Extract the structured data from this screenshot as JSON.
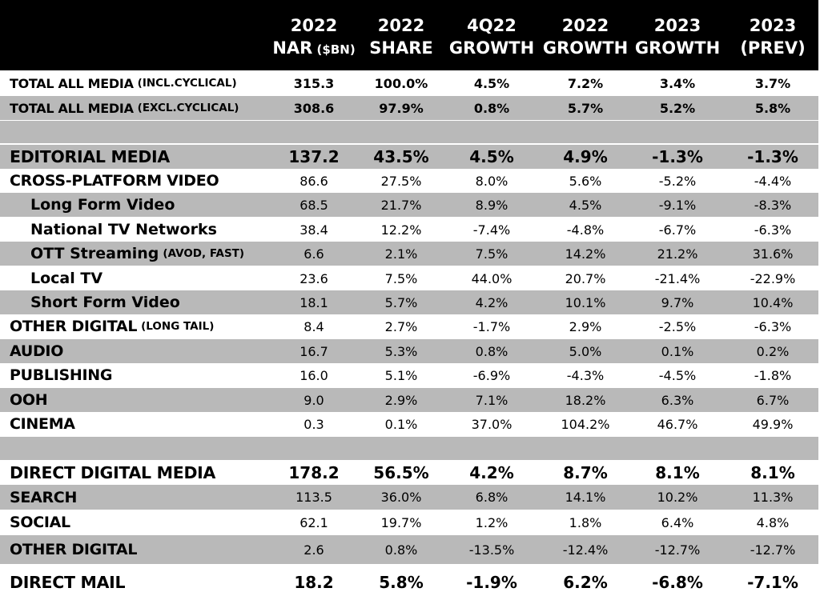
{
  "header": {
    "columns": [
      {
        "line1": "2022",
        "line2": "NAR",
        "line2_small": "($BN)"
      },
      {
        "line1": "2022",
        "line2": "SHARE",
        "line2_small": ""
      },
      {
        "line1": "4Q22",
        "line2": "GROWTH",
        "line2_small": ""
      },
      {
        "line1": "2022",
        "line2": "GROWTH",
        "line2_small": ""
      },
      {
        "line1": "2023",
        "line2": "GROWTH",
        "line2_small": ""
      },
      {
        "line1": "2023",
        "line2": "(PREV)",
        "line2_small": ""
      }
    ]
  },
  "rows": [
    {
      "label": "TOTAL ALL MEDIA",
      "sub": "(INCL.CYCLICAL)",
      "values": [
        "315.3",
        "100.0%",
        "4.5%",
        "7.2%",
        "3.4%",
        "3.7%"
      ]
    },
    {
      "label": "TOTAL ALL MEDIA",
      "sub": "(EXCL.CYCLICAL)",
      "values": [
        "308.6",
        "97.9%",
        "0.8%",
        "5.7%",
        "5.2%",
        "5.8%"
      ]
    },
    {
      "label": "EDITORIAL MEDIA",
      "sub": "",
      "values": [
        "137.2",
        "43.5%",
        "4.5%",
        "4.9%",
        "-1.3%",
        "-1.3%"
      ]
    },
    {
      "label": "CROSS-PLATFORM VIDEO",
      "sub": "",
      "values": [
        "86.6",
        "27.5%",
        "8.0%",
        "5.6%",
        "-5.2%",
        "-4.4%"
      ]
    },
    {
      "label": "Long Form Video",
      "sub": "",
      "values": [
        "68.5",
        "21.7%",
        "8.9%",
        "4.5%",
        "-9.1%",
        "-8.3%"
      ]
    },
    {
      "label": "National TV Networks",
      "sub": "",
      "values": [
        "38.4",
        "12.2%",
        "-7.4%",
        "-4.8%",
        "-6.7%",
        "-6.3%"
      ]
    },
    {
      "label": "OTT Streaming",
      "sub": "(AVOD, FAST)",
      "values": [
        "6.6",
        "2.1%",
        "7.5%",
        "14.2%",
        "21.2%",
        "31.6%"
      ]
    },
    {
      "label": "Local TV",
      "sub": "",
      "values": [
        "23.6",
        "7.5%",
        "44.0%",
        "20.7%",
        "-21.4%",
        "-22.9%"
      ]
    },
    {
      "label": "Short Form Video",
      "sub": "",
      "values": [
        "18.1",
        "5.7%",
        "4.2%",
        "10.1%",
        "9.7%",
        "10.4%"
      ]
    },
    {
      "label": "OTHER DIGITAL",
      "sub": "(LONG TAIL)",
      "values": [
        "8.4",
        "2.7%",
        "-1.7%",
        "2.9%",
        "-2.5%",
        "-6.3%"
      ]
    },
    {
      "label": "AUDIO",
      "sub": "",
      "values": [
        "16.7",
        "5.3%",
        "0.8%",
        "5.0%",
        "0.1%",
        "0.2%"
      ]
    },
    {
      "label": "PUBLISHING",
      "sub": "",
      "values": [
        "16.0",
        "5.1%",
        "-6.9%",
        "-4.3%",
        "-4.5%",
        "-1.8%"
      ]
    },
    {
      "label": "OOH",
      "sub": "",
      "values": [
        "9.0",
        "2.9%",
        "7.1%",
        "18.2%",
        "6.3%",
        "6.7%"
      ]
    },
    {
      "label": "CINEMA",
      "sub": "",
      "values": [
        "0.3",
        "0.1%",
        "37.0%",
        "104.2%",
        "46.7%",
        "49.9%"
      ]
    },
    {
      "label": "DIRECT DIGITAL MEDIA",
      "sub": "",
      "values": [
        "178.2",
        "56.5%",
        "4.2%",
        "8.7%",
        "8.1%",
        "8.1%"
      ]
    },
    {
      "label": "SEARCH",
      "sub": "",
      "values": [
        "113.5",
        "36.0%",
        "6.8%",
        "14.1%",
        "10.2%",
        "11.3%"
      ]
    },
    {
      "label": "SOCIAL",
      "sub": "",
      "values": [
        "62.1",
        "19.7%",
        "1.2%",
        "1.8%",
        "6.4%",
        "4.8%"
      ]
    },
    {
      "label": "OTHER DIGITAL",
      "sub": "",
      "values": [
        "2.6",
        "0.8%",
        "-13.5%",
        "-12.4%",
        "-12.7%",
        "-12.7%"
      ]
    },
    {
      "label": "DIRECT MAIL",
      "sub": "",
      "values": [
        "18.2",
        "5.8%",
        "-1.9%",
        "6.2%",
        "-6.8%",
        "-7.1%"
      ]
    }
  ]
}
